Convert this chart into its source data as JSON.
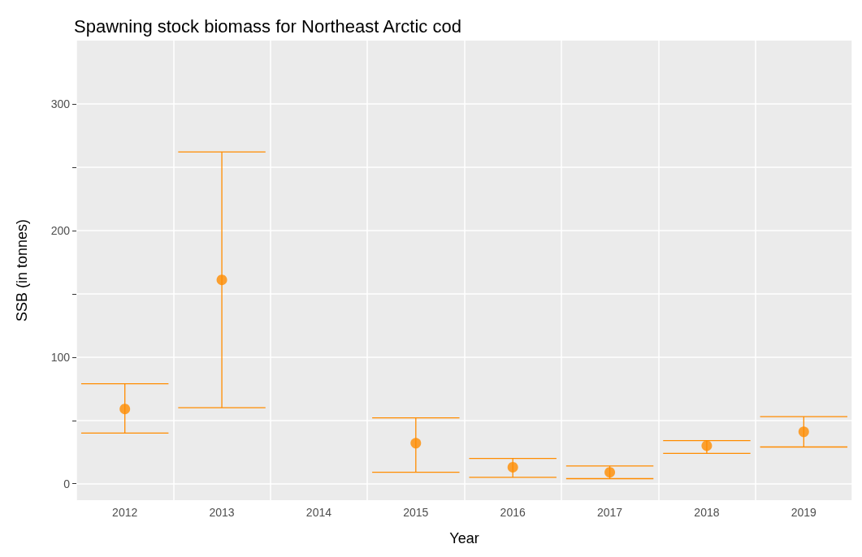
{
  "chart_data": {
    "type": "scatter",
    "title": "Spawning stock biomass for Northeast Arctic cod",
    "xlabel": "Year",
    "ylabel": "SSB (in tonnes)",
    "categories": [
      "2012",
      "2013",
      "2014",
      "2015",
      "2016",
      "2017",
      "2018",
      "2019"
    ],
    "series": [
      {
        "color": "#ff8c00",
        "values": [
          59,
          161,
          null,
          32,
          13,
          9,
          30,
          41
        ],
        "errors": [
          [
            40,
            79
          ],
          [
            60,
            262
          ],
          null,
          [
            9,
            52
          ],
          [
            5,
            20
          ],
          [
            4,
            14
          ],
          [
            24,
            34
          ],
          [
            29,
            53
          ]
        ]
      }
    ],
    "ylim": [
      -13,
      350
    ],
    "yticks": [
      0,
      {
        "value": 50,
        "label": null
      },
      100,
      {
        "value": 150,
        "label": null
      },
      200,
      {
        "value": 250,
        "label": null
      },
      300
    ],
    "grid": true,
    "marker": "circle"
  }
}
